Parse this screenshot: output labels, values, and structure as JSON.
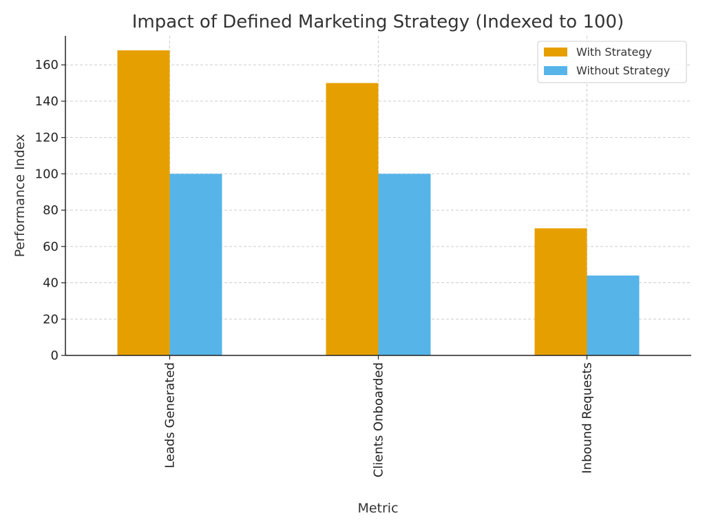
{
  "chart_data": {
    "type": "bar",
    "title": "Impact of Defined Marketing Strategy (Indexed to 100)",
    "xlabel": "Metric",
    "ylabel": "Performance Index",
    "categories": [
      "Leads Generated",
      "Clients Onboarded",
      "Inbound Requests"
    ],
    "series": [
      {
        "name": "With Strategy",
        "values": [
          168,
          150,
          70
        ],
        "color": "#E69F00"
      },
      {
        "name": "Without Strategy",
        "values": [
          100,
          100,
          44
        ],
        "color": "#56B4E9"
      }
    ],
    "ylim": [
      0,
      176
    ],
    "yticks": [
      0,
      20,
      40,
      60,
      80,
      100,
      120,
      140,
      160
    ],
    "grid": true,
    "legend_position": "top-right"
  }
}
